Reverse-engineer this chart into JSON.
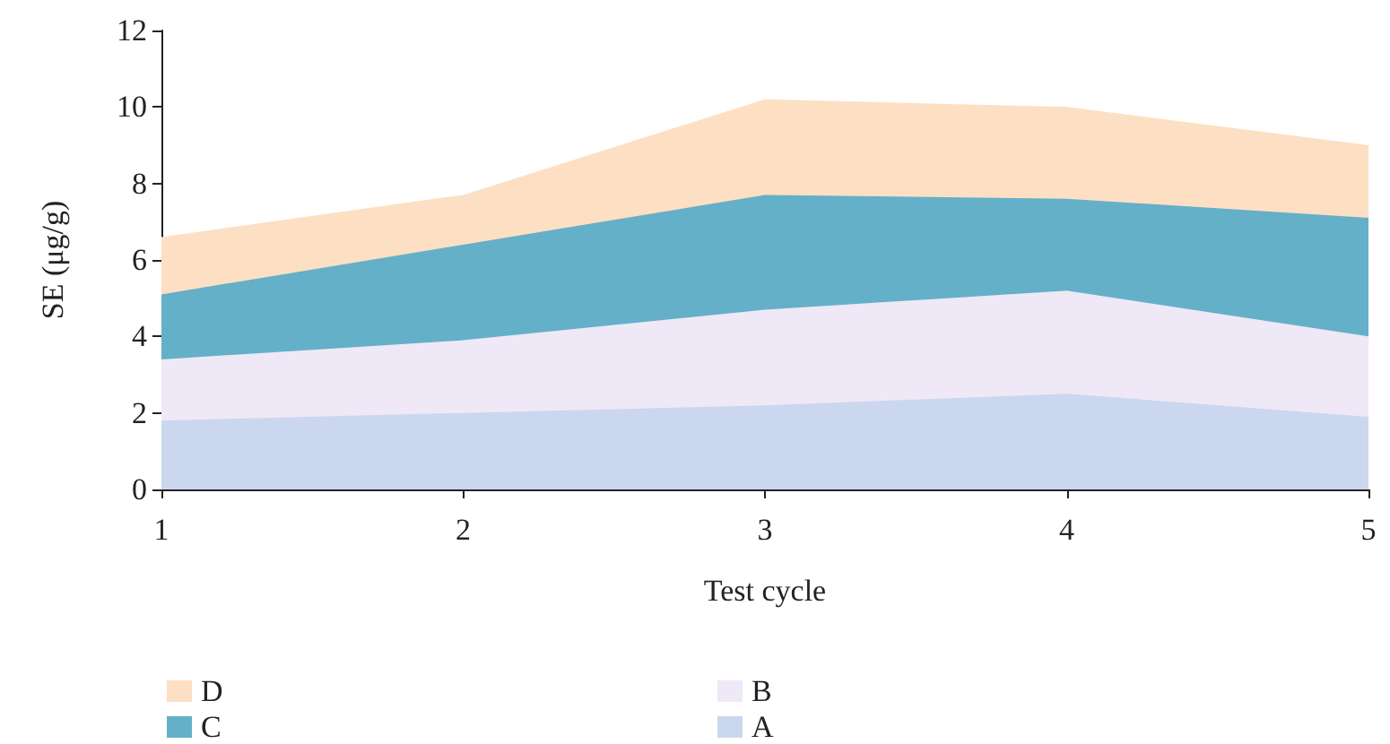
{
  "chart_data": {
    "type": "area",
    "stacked": true,
    "xlabel": "Test cycle",
    "ylabel": "SE (μg/g)",
    "x": [
      1,
      2,
      3,
      4,
      5
    ],
    "xlim": [
      1,
      5
    ],
    "xticks": [
      1,
      2,
      3,
      4,
      5
    ],
    "ylim": [
      0,
      12
    ],
    "yticks": [
      0,
      2,
      4,
      6,
      8,
      10,
      12
    ],
    "grid": false,
    "legend": "bottom",
    "series": [
      {
        "name": "A",
        "color": "#cbd7ee",
        "values": [
          1.8,
          2.0,
          2.2,
          2.5,
          1.9
        ]
      },
      {
        "name": "B",
        "color": "#efe8f6",
        "values": [
          1.6,
          1.9,
          2.5,
          2.7,
          2.1
        ]
      },
      {
        "name": "C",
        "color": "#64b0c8",
        "values": [
          1.7,
          2.5,
          3.0,
          2.4,
          3.1
        ]
      },
      {
        "name": "D",
        "color": "#fddfc3",
        "values": [
          1.5,
          1.3,
          2.5,
          2.4,
          1.9
        ]
      }
    ]
  }
}
